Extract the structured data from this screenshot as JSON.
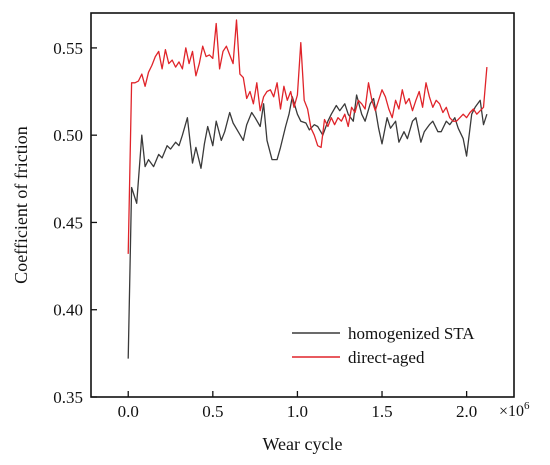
{
  "chart_data": {
    "type": "line",
    "xlabel": "Wear cycle",
    "ylabel": "Coefficient of friction",
    "x_multiplier_label": "×10",
    "x_multiplier_exponent": "6",
    "x_scale": 1000000,
    "xlim": [
      -0.22,
      2.28
    ],
    "ylim": [
      0.35,
      0.57
    ],
    "x_ticks": [
      0.0,
      0.5,
      1.0,
      1.5,
      2.0
    ],
    "x_tick_labels": [
      "0.0",
      "0.5",
      "1.0",
      "1.5",
      "2.0"
    ],
    "y_ticks": [
      0.35,
      0.4,
      0.45,
      0.5,
      0.55
    ],
    "y_tick_labels": [
      "0.35",
      "0.40",
      "0.45",
      "0.50",
      "0.55"
    ],
    "grid": false,
    "legend_position": "bottom-right",
    "series": [
      {
        "name": "homogenized STA",
        "color": "#3a3a3a",
        "x": [
          0.0,
          0.02,
          0.05,
          0.08,
          0.1,
          0.12,
          0.15,
          0.18,
          0.2,
          0.23,
          0.25,
          0.28,
          0.3,
          0.32,
          0.35,
          0.38,
          0.4,
          0.43,
          0.45,
          0.47,
          0.5,
          0.52,
          0.55,
          0.57,
          0.6,
          0.62,
          0.65,
          0.68,
          0.7,
          0.73,
          0.75,
          0.78,
          0.8,
          0.82,
          0.85,
          0.88,
          0.9,
          0.93,
          0.95,
          0.97,
          1.0,
          1.02,
          1.05,
          1.07,
          1.1,
          1.12,
          1.15,
          1.18,
          1.2,
          1.23,
          1.25,
          1.28,
          1.3,
          1.33,
          1.35,
          1.38,
          1.4,
          1.43,
          1.45,
          1.48,
          1.5,
          1.53,
          1.55,
          1.58,
          1.6,
          1.63,
          1.65,
          1.68,
          1.7,
          1.73,
          1.75,
          1.78,
          1.8,
          1.83,
          1.85,
          1.88,
          1.9,
          1.93,
          1.95,
          1.98,
          2.0,
          2.03,
          2.05,
          2.08,
          2.1,
          2.12
        ],
        "y": [
          0.372,
          0.47,
          0.461,
          0.5,
          0.482,
          0.486,
          0.482,
          0.489,
          0.487,
          0.494,
          0.492,
          0.496,
          0.494,
          0.5,
          0.51,
          0.484,
          0.493,
          0.481,
          0.495,
          0.505,
          0.494,
          0.508,
          0.497,
          0.502,
          0.513,
          0.507,
          0.502,
          0.497,
          0.506,
          0.513,
          0.51,
          0.505,
          0.518,
          0.497,
          0.486,
          0.486,
          0.493,
          0.505,
          0.512,
          0.522,
          0.512,
          0.508,
          0.507,
          0.503,
          0.506,
          0.505,
          0.5,
          0.508,
          0.512,
          0.517,
          0.514,
          0.518,
          0.512,
          0.508,
          0.523,
          0.512,
          0.508,
          0.518,
          0.521,
          0.504,
          0.495,
          0.51,
          0.504,
          0.508,
          0.496,
          0.502,
          0.498,
          0.508,
          0.51,
          0.496,
          0.502,
          0.506,
          0.508,
          0.502,
          0.502,
          0.508,
          0.506,
          0.51,
          0.504,
          0.498,
          0.488,
          0.512,
          0.516,
          0.52,
          0.506,
          0.512
        ]
      },
      {
        "name": "direct-aged",
        "color": "#e0242a",
        "x": [
          0.0,
          0.02,
          0.04,
          0.06,
          0.08,
          0.1,
          0.12,
          0.14,
          0.16,
          0.18,
          0.2,
          0.22,
          0.24,
          0.26,
          0.28,
          0.3,
          0.32,
          0.34,
          0.36,
          0.38,
          0.4,
          0.42,
          0.44,
          0.46,
          0.48,
          0.5,
          0.52,
          0.54,
          0.56,
          0.58,
          0.6,
          0.62,
          0.64,
          0.66,
          0.68,
          0.7,
          0.72,
          0.74,
          0.76,
          0.78,
          0.8,
          0.82,
          0.84,
          0.86,
          0.88,
          0.9,
          0.92,
          0.94,
          0.96,
          0.98,
          1.0,
          1.02,
          1.04,
          1.06,
          1.08,
          1.1,
          1.12,
          1.14,
          1.16,
          1.18,
          1.2,
          1.22,
          1.24,
          1.26,
          1.28,
          1.3,
          1.32,
          1.34,
          1.36,
          1.38,
          1.4,
          1.42,
          1.44,
          1.46,
          1.48,
          1.5,
          1.52,
          1.54,
          1.56,
          1.58,
          1.6,
          1.62,
          1.64,
          1.66,
          1.68,
          1.7,
          1.72,
          1.74,
          1.76,
          1.78,
          1.8,
          1.82,
          1.84,
          1.86,
          1.88,
          1.9,
          1.92,
          1.94,
          1.96,
          1.98,
          2.0,
          2.02,
          2.04,
          2.06,
          2.08,
          2.1,
          2.12
        ],
        "y": [
          0.432,
          0.53,
          0.53,
          0.531,
          0.535,
          0.528,
          0.536,
          0.54,
          0.545,
          0.548,
          0.538,
          0.549,
          0.541,
          0.543,
          0.539,
          0.542,
          0.538,
          0.55,
          0.541,
          0.548,
          0.534,
          0.541,
          0.551,
          0.545,
          0.546,
          0.544,
          0.564,
          0.538,
          0.548,
          0.551,
          0.546,
          0.541,
          0.566,
          0.535,
          0.533,
          0.521,
          0.525,
          0.518,
          0.53,
          0.514,
          0.522,
          0.525,
          0.526,
          0.522,
          0.53,
          0.515,
          0.528,
          0.52,
          0.525,
          0.516,
          0.523,
          0.553,
          0.52,
          0.515,
          0.504,
          0.5,
          0.494,
          0.493,
          0.509,
          0.505,
          0.51,
          0.506,
          0.51,
          0.508,
          0.512,
          0.505,
          0.516,
          0.513,
          0.52,
          0.518,
          0.515,
          0.53,
          0.52,
          0.514,
          0.52,
          0.526,
          0.522,
          0.515,
          0.51,
          0.52,
          0.515,
          0.526,
          0.518,
          0.521,
          0.514,
          0.52,
          0.525,
          0.516,
          0.53,
          0.522,
          0.516,
          0.52,
          0.518,
          0.513,
          0.516,
          0.51,
          0.508,
          0.508,
          0.51,
          0.512,
          0.51,
          0.513,
          0.515,
          0.512,
          0.514,
          0.516,
          0.539
        ]
      }
    ]
  }
}
